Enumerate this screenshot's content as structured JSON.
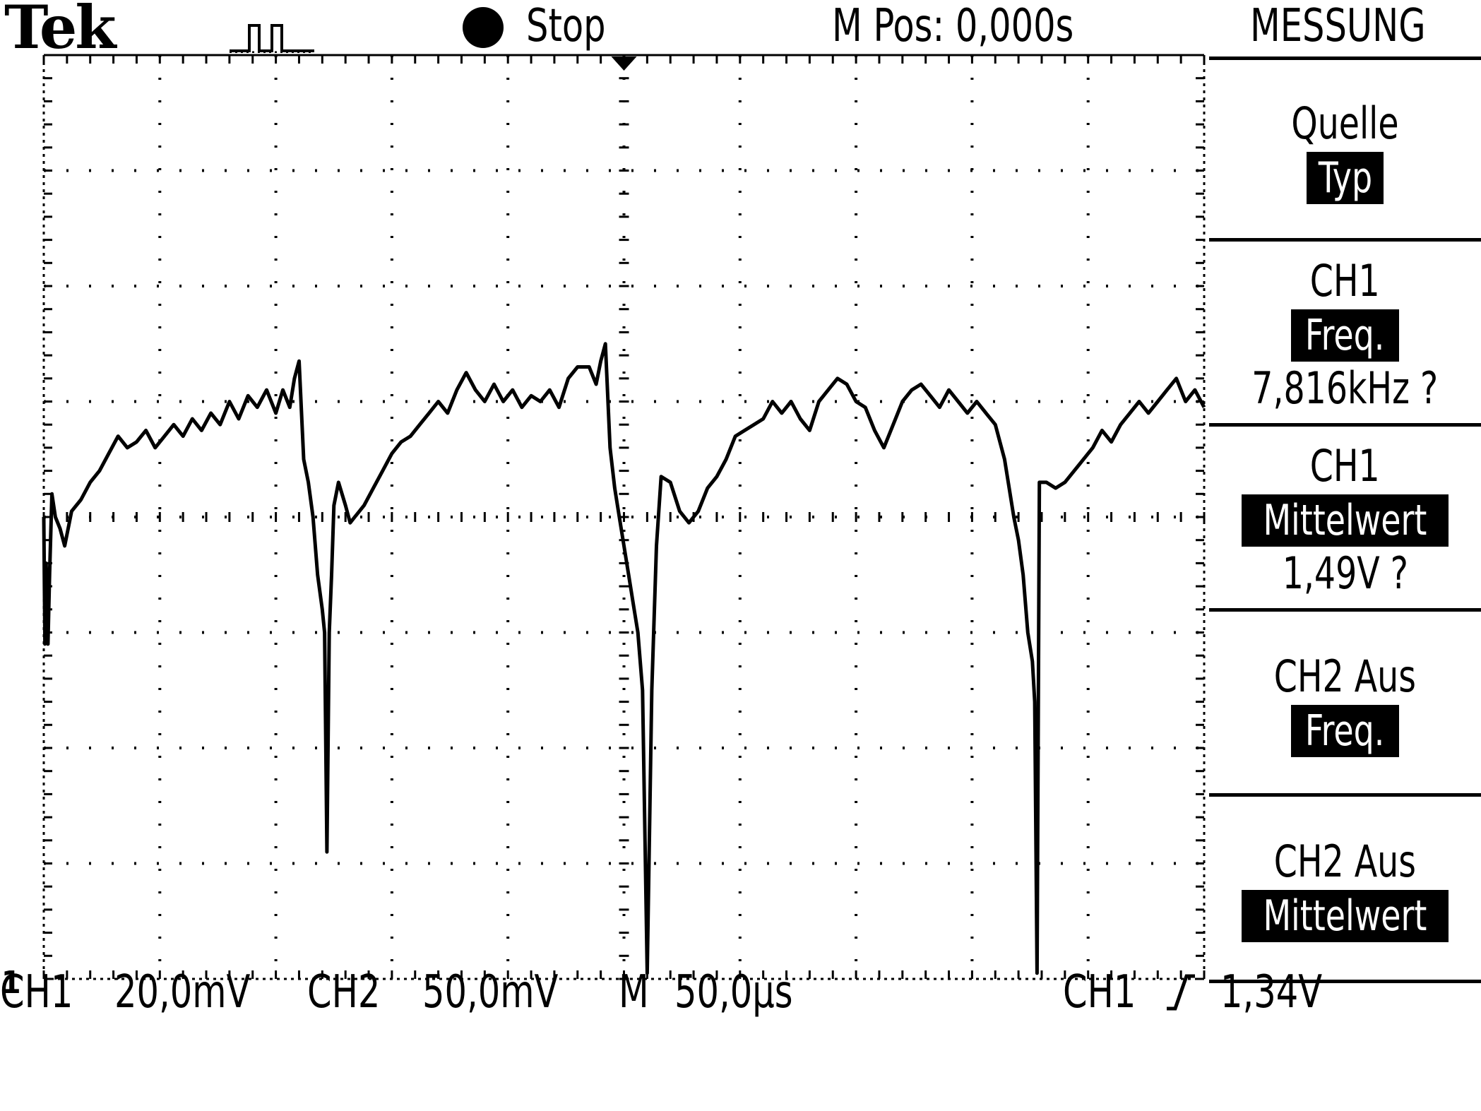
{
  "header": {
    "brand": "Tek",
    "acquisition_icon": "trigger-position-waveform-icon",
    "run_state_icon": "stop-dot-icon",
    "run_state": "Stop",
    "m_pos": "M Pos: 0,000s",
    "menu_title": "MESSUNG"
  },
  "menu": [
    {
      "line1": "Quelle",
      "highlight": "Typ",
      "value": ""
    },
    {
      "line1": "CH1",
      "highlight": "Freq.",
      "value": "7,816kHz ?"
    },
    {
      "line1": "CH1",
      "highlight": "Mittelwert",
      "value": "1,49V ?"
    },
    {
      "line1": "CH2 Aus",
      "highlight": "Freq.",
      "value": ""
    },
    {
      "line1": "CH2 Aus",
      "highlight": "Mittelwert",
      "value": ""
    }
  ],
  "channel_marker": "1",
  "footer": {
    "ch1_label": "CH1",
    "ch1_scale": "20,0mV",
    "ch2_label": "CH2",
    "ch2_scale": "50,0mV",
    "timebase_label": "M",
    "timebase": "50,0µs",
    "trigger_source": "CH1",
    "trigger_slope_icon": "rising-edge-icon",
    "trigger_level": "1,34V"
  },
  "chart_data": {
    "type": "line",
    "title": "",
    "xlabel": "",
    "ylabel": "",
    "x_unit": "s",
    "y_unit": "V",
    "xlim": [
      -0.00025,
      0.00025
    ],
    "ylim": [
      -0.08,
      0.08
    ],
    "grid": true,
    "legend": "none",
    "series": [
      {
        "name": "CH1",
        "points": [
          [
            -0.00025,
            0.0
          ],
          [
            -0.0002495,
            -0.022
          ],
          [
            -0.000249,
            -0.008
          ],
          [
            -0.0002482,
            -0.022
          ],
          [
            -0.0002475,
            -0.01
          ],
          [
            -0.0002465,
            0.004
          ],
          [
            -0.000245,
            0.0
          ],
          [
            -0.000243,
            -0.002
          ],
          [
            -0.000241,
            -0.005
          ],
          [
            -0.000238,
            0.001
          ],
          [
            -0.000234,
            0.003
          ],
          [
            -0.00023,
            0.006
          ],
          [
            -0.000226,
            0.008
          ],
          [
            -0.000222,
            0.011
          ],
          [
            -0.000218,
            0.014
          ],
          [
            -0.000214,
            0.012
          ],
          [
            -0.00021,
            0.013
          ],
          [
            -0.000206,
            0.015
          ],
          [
            -0.000202,
            0.012
          ],
          [
            -0.000198,
            0.014
          ],
          [
            -0.000194,
            0.016
          ],
          [
            -0.00019,
            0.014
          ],
          [
            -0.000186,
            0.017
          ],
          [
            -0.000182,
            0.015
          ],
          [
            -0.000178,
            0.018
          ],
          [
            -0.000174,
            0.016
          ],
          [
            -0.00017,
            0.02
          ],
          [
            -0.000166,
            0.017
          ],
          [
            -0.000162,
            0.021
          ],
          [
            -0.000158,
            0.019
          ],
          [
            -0.000154,
            0.022
          ],
          [
            -0.00015,
            0.018
          ],
          [
            -0.000147,
            0.022
          ],
          [
            -0.000144,
            0.019
          ],
          [
            -0.000142,
            0.024
          ],
          [
            -0.00014,
            0.027
          ],
          [
            -0.000138,
            0.01
          ],
          [
            -0.000136,
            0.006
          ],
          [
            -0.000134,
            0.0
          ],
          [
            -0.000132,
            -0.01
          ],
          [
            -0.00013,
            -0.016
          ],
          [
            -0.000129,
            -0.02
          ],
          [
            -0.000128,
            -0.058
          ],
          [
            -0.000127,
            -0.02
          ],
          [
            -0.000126,
            -0.01
          ],
          [
            -0.000125,
            0.002
          ],
          [
            -0.000123,
            0.006
          ],
          [
            -0.00012,
            0.002
          ],
          [
            -0.000118,
            -0.001
          ],
          [
            -0.000116,
            0.0
          ],
          [
            -0.000112,
            0.002
          ],
          [
            -0.000108,
            0.005
          ],
          [
            -0.000104,
            0.008
          ],
          [
            -0.0001,
            0.011
          ],
          [
            -9.6e-05,
            0.013
          ],
          [
            -9.2e-05,
            0.014
          ],
          [
            -8.8e-05,
            0.016
          ],
          [
            -8.4e-05,
            0.018
          ],
          [
            -8e-05,
            0.02
          ],
          [
            -7.6e-05,
            0.018
          ],
          [
            -7.2e-05,
            0.022
          ],
          [
            -6.8e-05,
            0.025
          ],
          [
            -6.4e-05,
            0.022
          ],
          [
            -6e-05,
            0.02
          ],
          [
            -5.6e-05,
            0.023
          ],
          [
            -5.2e-05,
            0.02
          ],
          [
            -4.8e-05,
            0.022
          ],
          [
            -4.4e-05,
            0.019
          ],
          [
            -4e-05,
            0.021
          ],
          [
            -3.6e-05,
            0.02
          ],
          [
            -3.2e-05,
            0.022
          ],
          [
            -2.8e-05,
            0.019
          ],
          [
            -2.4e-05,
            0.024
          ],
          [
            -2e-05,
            0.026
          ],
          [
            -1.5e-05,
            0.026
          ],
          [
            -1.2e-05,
            0.023
          ],
          [
            -1e-05,
            0.027
          ],
          [
            -8e-06,
            0.03
          ],
          [
            -6e-06,
            0.012
          ],
          [
            -4e-06,
            0.005
          ],
          [
            -2e-06,
            0.0
          ],
          [
            0.0,
            -0.005
          ],
          [
            2e-06,
            -0.01
          ],
          [
            4e-06,
            -0.015
          ],
          [
            6e-06,
            -0.02
          ],
          [
            8e-06,
            -0.03
          ],
          [
            1e-05,
            -0.079
          ],
          [
            1.2e-05,
            -0.03
          ],
          [
            1.4e-05,
            -0.005
          ],
          [
            1.6e-05,
            0.007
          ],
          [
            2e-05,
            0.006
          ],
          [
            2.4e-05,
            0.001
          ],
          [
            2.8e-05,
            -0.001
          ],
          [
            3.2e-05,
            0.001
          ],
          [
            3.6e-05,
            0.005
          ],
          [
            4e-05,
            0.007
          ],
          [
            4.4e-05,
            0.01
          ],
          [
            4.8e-05,
            0.014
          ],
          [
            5.2e-05,
            0.015
          ],
          [
            5.6e-05,
            0.016
          ],
          [
            6e-05,
            0.017
          ],
          [
            6.4e-05,
            0.02
          ],
          [
            6.8e-05,
            0.018
          ],
          [
            7.2e-05,
            0.02
          ],
          [
            7.6e-05,
            0.017
          ],
          [
            8e-05,
            0.015
          ],
          [
            8.4e-05,
            0.02
          ],
          [
            8.8e-05,
            0.022
          ],
          [
            9.2e-05,
            0.024
          ],
          [
            9.6e-05,
            0.023
          ],
          [
            0.0001,
            0.02
          ],
          [
            0.000104,
            0.019
          ],
          [
            0.000108,
            0.015
          ],
          [
            0.000112,
            0.012
          ],
          [
            0.000116,
            0.016
          ],
          [
            0.00012,
            0.02
          ],
          [
            0.000124,
            0.022
          ],
          [
            0.000128,
            0.023
          ],
          [
            0.000132,
            0.021
          ],
          [
            0.000136,
            0.019
          ],
          [
            0.00014,
            0.022
          ],
          [
            0.000144,
            0.02
          ],
          [
            0.000148,
            0.018
          ],
          [
            0.000152,
            0.02
          ],
          [
            0.000156,
            0.018
          ],
          [
            0.00016,
            0.016
          ],
          [
            0.000164,
            0.01
          ],
          [
            0.000168,
            0.0
          ],
          [
            0.00017,
            -0.004
          ],
          [
            0.000172,
            -0.01
          ],
          [
            0.000174,
            -0.02
          ],
          [
            0.000176,
            -0.025
          ],
          [
            0.000177,
            -0.032
          ],
          [
            0.000178,
            -0.079
          ],
          [
            0.000179,
            0.006
          ],
          [
            0.000182,
            0.006
          ],
          [
            0.000186,
            0.005
          ],
          [
            0.00019,
            0.006
          ],
          [
            0.000194,
            0.008
          ],
          [
            0.000198,
            0.01
          ],
          [
            0.000202,
            0.012
          ],
          [
            0.000206,
            0.015
          ],
          [
            0.00021,
            0.013
          ],
          [
            0.000214,
            0.016
          ],
          [
            0.000218,
            0.018
          ],
          [
            0.000222,
            0.02
          ],
          [
            0.000226,
            0.018
          ],
          [
            0.00023,
            0.02
          ],
          [
            0.000234,
            0.022
          ],
          [
            0.000238,
            0.024
          ],
          [
            0.000242,
            0.02
          ],
          [
            0.000246,
            0.022
          ],
          [
            0.00025,
            0.019
          ]
        ]
      }
    ],
    "trigger_level_marker": "1,34V"
  }
}
